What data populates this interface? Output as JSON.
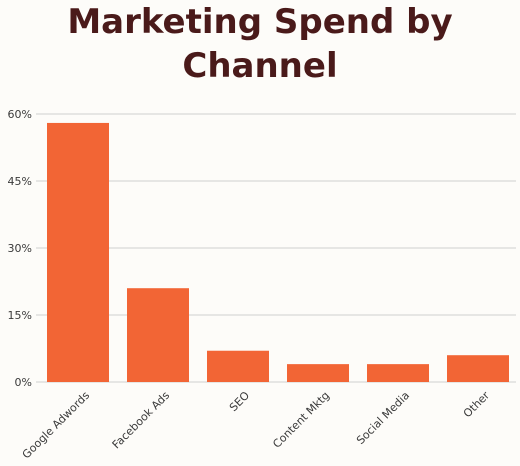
{
  "colors": {
    "background": "#fdfcf9",
    "title": "#4a1a1a",
    "bar": "#f26535",
    "grid": "#cfcfcf",
    "text": "#3a3a3a"
  },
  "chart_data": {
    "type": "bar",
    "title": "Marketing Spend by Channel",
    "categories": [
      "Google Adwords",
      "Facebook Ads",
      "SEO",
      "Content Mktg",
      "Social Media",
      "Other"
    ],
    "values": [
      58,
      21,
      7,
      4,
      4,
      6
    ],
    "yticks": [
      "0%",
      "15%",
      "30%",
      "45%",
      "60%"
    ],
    "ylim": [
      0,
      60
    ],
    "grid": true
  }
}
